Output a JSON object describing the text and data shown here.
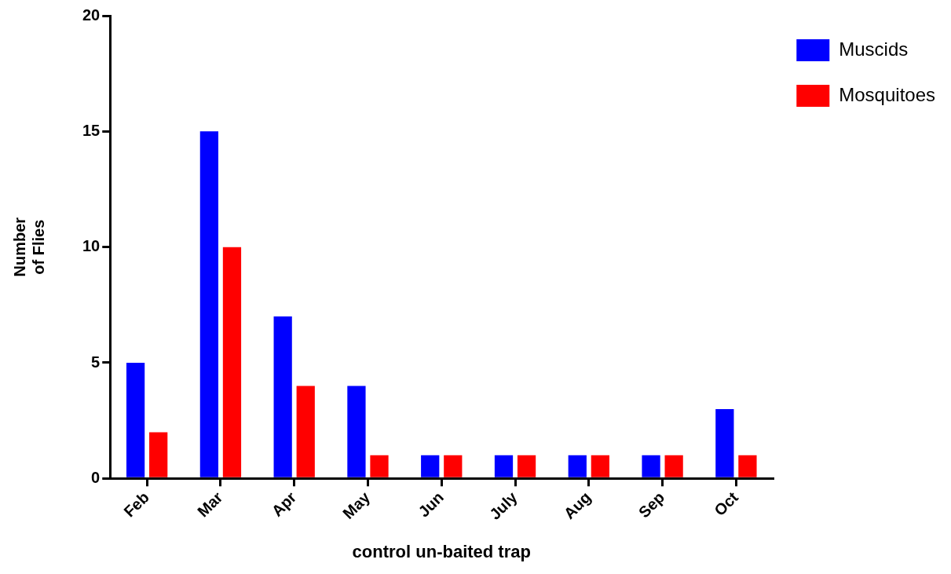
{
  "chart_data": {
    "type": "bar",
    "xlabel": "control un-baited trap",
    "ylabel": "Number\nof Flies",
    "categories": [
      "Feb",
      "Mar",
      "Apr",
      "May",
      "Jun",
      "July",
      "Aug",
      "Sep",
      "Oct"
    ],
    "series": [
      {
        "name": "Muscids",
        "color": "#0000ff",
        "values": [
          5,
          15,
          7,
          4,
          1,
          1,
          1,
          1,
          3
        ]
      },
      {
        "name": "Mosquitoes",
        "color": "#ff0000",
        "values": [
          2,
          10,
          4,
          1,
          1,
          1,
          1,
          1,
          1
        ]
      }
    ],
    "ylim": [
      0,
      20
    ],
    "yticks": [
      0,
      5,
      10,
      15,
      20
    ],
    "grid": false,
    "legend": "top right"
  }
}
